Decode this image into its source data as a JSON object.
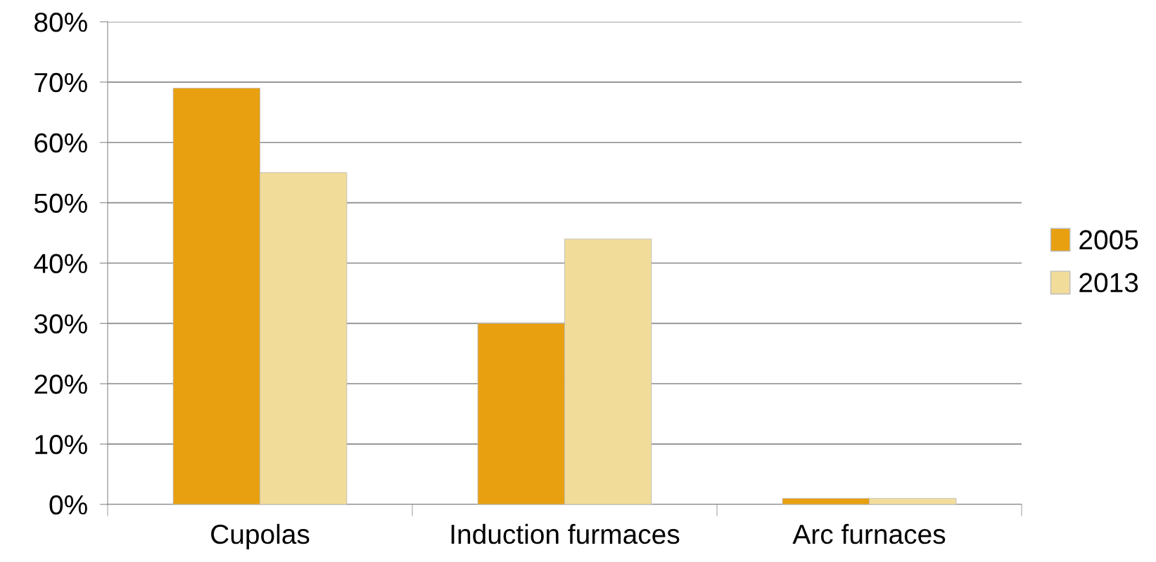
{
  "chart_data": {
    "type": "bar",
    "categories": [
      "Cupolas",
      "Induction furmaces",
      "Arc furnaces"
    ],
    "series": [
      {
        "name": "2005",
        "color": "#e8a010",
        "values": [
          69,
          30,
          1
        ]
      },
      {
        "name": "2013",
        "color": "#f2dc9a",
        "values": [
          55,
          44,
          1
        ]
      }
    ],
    "ylim": [
      0,
      80
    ],
    "yticks": [
      {
        "value": 0,
        "label": "0%"
      },
      {
        "value": 10,
        "label": "10%"
      },
      {
        "value": 20,
        "label": "20%"
      },
      {
        "value": 30,
        "label": "30%"
      },
      {
        "value": 40,
        "label": "40%"
      },
      {
        "value": 50,
        "label": "50%"
      },
      {
        "value": 60,
        "label": "60%"
      },
      {
        "value": 70,
        "label": "70%"
      },
      {
        "value": 80,
        "label": "80%"
      }
    ],
    "grid": "y",
    "legend": "right"
  }
}
